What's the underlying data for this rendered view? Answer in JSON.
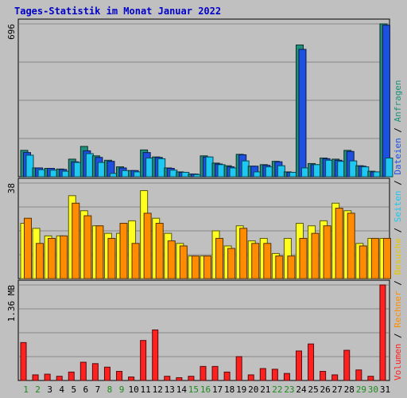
{
  "chart_data": {
    "type": "bar",
    "title": "Tages-Statistik im Monat Januar 2022",
    "categories": [
      "1",
      "2",
      "3",
      "4",
      "5",
      "6",
      "7",
      "8",
      "9",
      "10",
      "11",
      "12",
      "13",
      "14",
      "15",
      "16",
      "17",
      "18",
      "19",
      "20",
      "21",
      "22",
      "23",
      "24",
      "25",
      "26",
      "27",
      "28",
      "29",
      "30",
      "31"
    ],
    "weekend_days": [
      "1",
      "2",
      "8",
      "9",
      "15",
      "16",
      "22",
      "23",
      "29",
      "30"
    ],
    "panels": [
      {
        "id": "top",
        "ymax_label": "696",
        "ymax": 696,
        "series": [
          {
            "name": "Anfragen",
            "color": "#1f8f7a",
            "values": [
              120,
              40,
              38,
              35,
              80,
              138,
              95,
              75,
              45,
              28,
              122,
              90,
              40,
              22,
              12,
              95,
              62,
              50,
              102,
              48,
              55,
              70,
              22,
              600,
              60,
              85,
              80,
              120,
              50,
              25,
              696
            ]
          },
          {
            "name": "Dateien",
            "color": "#1e50e0",
            "values": [
              110,
              40,
              38,
              33,
              68,
              118,
              88,
              70,
              40,
              28,
              110,
              88,
              38,
              20,
              12,
              90,
              58,
              45,
              100,
              48,
              52,
              68,
              20,
              580,
              55,
              82,
              75,
              115,
              48,
              22,
              690
            ]
          },
          {
            "name": "Seiten",
            "color": "#1ec8f0",
            "values": [
              98,
              32,
              30,
              25,
              65,
              105,
              65,
              15,
              28,
              22,
              85,
              82,
              30,
              20,
              10,
              90,
              55,
              40,
              72,
              22,
              45,
              50,
              20,
              40,
              55,
              75,
              70,
              72,
              45,
              22,
              85
            ]
          }
        ]
      },
      {
        "id": "mid",
        "ymax_label": "38",
        "ymax": 38,
        "series": [
          {
            "name": "Besuche",
            "color": "#ffff20",
            "values": [
              22,
              20,
              17,
              17,
              33,
              27,
              21,
              18,
              18,
              23,
              35,
              24,
              18,
              14,
              9,
              9,
              19,
              13,
              21,
              15,
              16,
              10,
              16,
              22,
              21,
              23,
              30,
              27,
              14,
              16,
              16
            ]
          },
          {
            "name": "Rechner",
            "color": "#ff8c00",
            "values": [
              24,
              14,
              16,
              17,
              30,
              25,
              21,
              16,
              22,
              14,
              26,
              22,
              15,
              13,
              9,
              9,
              16,
              12,
              20,
              14,
              14,
              9,
              9,
              16,
              18,
              21,
              28,
              26,
              13,
              16,
              16
            ]
          }
        ]
      },
      {
        "id": "bottom",
        "ymax_label": "1.36 MB",
        "ymax": 1.36,
        "series": [
          {
            "name": "Volumen",
            "color": "#ff2020",
            "values": [
              0.54,
              0.08,
              0.09,
              0.06,
              0.12,
              0.26,
              0.24,
              0.19,
              0.13,
              0.05,
              0.57,
              0.72,
              0.06,
              0.04,
              0.06,
              0.2,
              0.2,
              0.12,
              0.34,
              0.08,
              0.17,
              0.16,
              0.1,
              0.42,
              0.52,
              0.13,
              0.08,
              0.43,
              0.15,
              0.06,
              1.36
            ]
          }
        ]
      }
    ],
    "legend": [
      {
        "text": "Volumen",
        "color": "#ff2020"
      },
      {
        "text": "Rechner",
        "color": "#ff8c00"
      },
      {
        "text": "Besuche",
        "color": "#e8c800"
      },
      {
        "text": "Seiten",
        "color": "#1ec8f0"
      },
      {
        "text": "Dateien",
        "color": "#1e50e0"
      },
      {
        "text": "Anfragen",
        "color": "#1f8f7a"
      }
    ],
    "grid": true,
    "legend_placement": "right-vertical"
  }
}
